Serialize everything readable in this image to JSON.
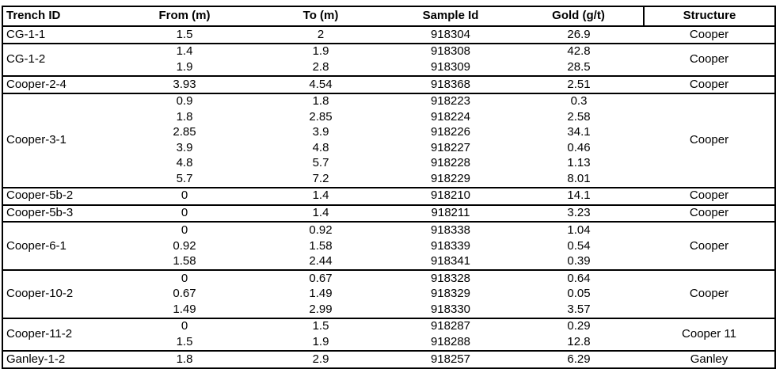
{
  "table": {
    "headers": [
      "Trench ID",
      "From (m)",
      "To (m)",
      "Sample Id",
      "Gold (g/t)",
      "Structure"
    ],
    "groups": [
      {
        "trench_id": "CG-1-1",
        "structure": "Cooper",
        "rows": [
          {
            "from": "1.5",
            "to": "2",
            "sample_id": "918304",
            "gold": "26.9"
          }
        ]
      },
      {
        "trench_id": "CG-1-2",
        "structure": "Cooper",
        "rows": [
          {
            "from": "1.4",
            "to": "1.9",
            "sample_id": "918308",
            "gold": "42.8"
          },
          {
            "from": "1.9",
            "to": "2.8",
            "sample_id": "918309",
            "gold": "28.5"
          }
        ]
      },
      {
        "trench_id": "Cooper-2-4",
        "structure": "Cooper",
        "rows": [
          {
            "from": "3.93",
            "to": "4.54",
            "sample_id": "918368",
            "gold": "2.51"
          }
        ]
      },
      {
        "trench_id": "Cooper-3-1",
        "structure": "Cooper",
        "rows": [
          {
            "from": "0.9",
            "to": "1.8",
            "sample_id": "918223",
            "gold": "0.3"
          },
          {
            "from": "1.8",
            "to": "2.85",
            "sample_id": "918224",
            "gold": "2.58"
          },
          {
            "from": "2.85",
            "to": "3.9",
            "sample_id": "918226",
            "gold": "34.1"
          },
          {
            "from": "3.9",
            "to": "4.8",
            "sample_id": "918227",
            "gold": "0.46"
          },
          {
            "from": "4.8",
            "to": "5.7",
            "sample_id": "918228",
            "gold": "1.13"
          },
          {
            "from": "5.7",
            "to": "7.2",
            "sample_id": "918229",
            "gold": "8.01"
          }
        ]
      },
      {
        "trench_id": "Cooper-5b-2",
        "structure": "Cooper",
        "rows": [
          {
            "from": "0",
            "to": "1.4",
            "sample_id": "918210",
            "gold": "14.1"
          }
        ]
      },
      {
        "trench_id": "Cooper-5b-3",
        "structure": "Cooper",
        "rows": [
          {
            "from": "0",
            "to": "1.4",
            "sample_id": "918211",
            "gold": "3.23"
          }
        ]
      },
      {
        "trench_id": "Cooper-6-1",
        "structure": "Cooper",
        "rows": [
          {
            "from": "0",
            "to": "0.92",
            "sample_id": "918338",
            "gold": "1.04"
          },
          {
            "from": "0.92",
            "to": "1.58",
            "sample_id": "918339",
            "gold": "0.54"
          },
          {
            "from": "1.58",
            "to": "2.44",
            "sample_id": "918341",
            "gold": "0.39"
          }
        ]
      },
      {
        "trench_id": "Cooper-10-2",
        "structure": "Cooper",
        "rows": [
          {
            "from": "0",
            "to": "0.67",
            "sample_id": "918328",
            "gold": "0.64"
          },
          {
            "from": "0.67",
            "to": "1.49",
            "sample_id": "918329",
            "gold": "0.05"
          },
          {
            "from": "1.49",
            "to": "2.99",
            "sample_id": "918330",
            "gold": "3.57"
          }
        ]
      },
      {
        "trench_id": "Cooper-11-2",
        "structure": "Cooper 11",
        "rows": [
          {
            "from": "0",
            "to": "1.5",
            "sample_id": "918287",
            "gold": "0.29"
          },
          {
            "from": "1.5",
            "to": "1.9",
            "sample_id": "918288",
            "gold": "12.8"
          }
        ]
      },
      {
        "trench_id": "Ganley-1-2",
        "structure": "Ganley",
        "rows": [
          {
            "from": "1.8",
            "to": "2.9",
            "sample_id": "918257",
            "gold": "6.29"
          }
        ]
      }
    ],
    "colors": {
      "border": "#000000",
      "text": "#000000",
      "background": "#ffffff"
    }
  }
}
